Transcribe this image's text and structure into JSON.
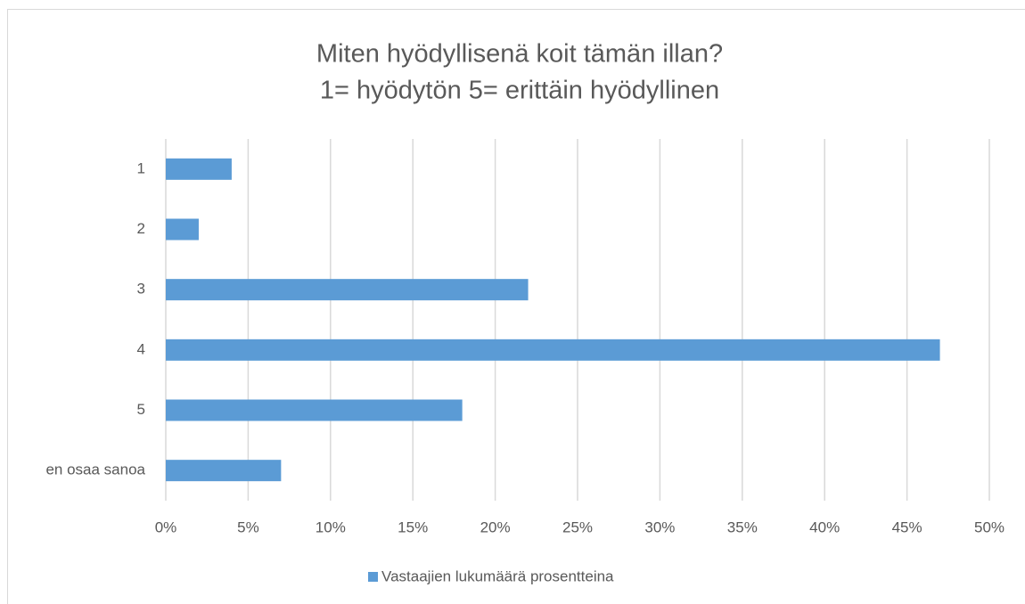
{
  "chart_data": {
    "type": "barh",
    "title": "Miten hyödyllisenä koit tämän illan?",
    "subtitle": "1= hyödytön 5= erittäin hyödyllinen",
    "categories": [
      "1",
      "2",
      "3",
      "4",
      "5",
      "en osaa sanoa"
    ],
    "series": [
      {
        "name": "Vastaajien lukumäärä prosentteina",
        "color": "#5b9bd5",
        "values": [
          4,
          2,
          22,
          47,
          18,
          7
        ]
      }
    ],
    "xlim": [
      0,
      50
    ],
    "xticks": [
      {
        "value": 0,
        "label": "0%"
      },
      {
        "value": 5,
        "label": "5%"
      },
      {
        "value": 10,
        "label": "10%"
      },
      {
        "value": 15,
        "label": "15%"
      },
      {
        "value": 20,
        "label": "20%"
      },
      {
        "value": 25,
        "label": "25%"
      },
      {
        "value": 30,
        "label": "30%"
      },
      {
        "value": 35,
        "label": "35%"
      },
      {
        "value": 40,
        "label": "40%"
      },
      {
        "value": 45,
        "label": "45%"
      },
      {
        "value": 50,
        "label": "50%"
      }
    ],
    "grid": true,
    "legend": "bottom"
  }
}
